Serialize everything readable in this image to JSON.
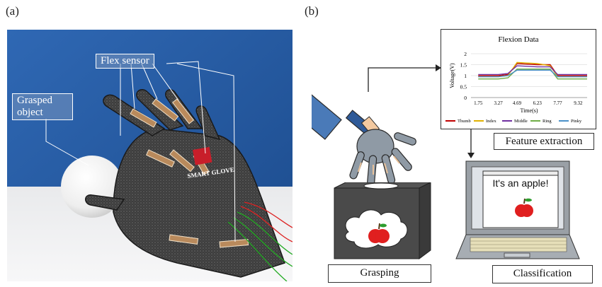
{
  "panel_a": {
    "label": "(a)",
    "callouts": {
      "flex_sensor": "Flex sensor",
      "grasped_object_line1": "Grasped",
      "grasped_object_line2": "object"
    },
    "glove_print": "SMART GLOVE"
  },
  "panel_b": {
    "label": "(b)",
    "apple_message": "It's an apple!",
    "captions": {
      "feature_extraction": "Feature extraction",
      "grasping": "Grasping",
      "classification": "Classification"
    }
  },
  "chart_data": {
    "type": "line",
    "title": "Flexion Data",
    "xlabel": "Time(s)",
    "ylabel": "Voltage(V)",
    "ylim": [
      0,
      2
    ],
    "y_ticks": [
      "0",
      "0.5",
      "1",
      "1.5",
      "2"
    ],
    "x_ticks": [
      "1.75",
      "3.27",
      "4.69",
      "6.23",
      "7.77",
      "9.32"
    ],
    "grid": true,
    "legend_position": "bottom",
    "x": [
      1.75,
      3.27,
      4.0,
      4.69,
      6.23,
      7.2,
      7.77,
      9.32,
      10.0
    ],
    "series": [
      {
        "name": "Thumb",
        "color": "#c00000",
        "values": [
          1.0,
          1.0,
          1.05,
          1.55,
          1.5,
          1.5,
          1.0,
          1.0,
          1.0
        ]
      },
      {
        "name": "Index",
        "color": "#e0b000",
        "values": [
          0.95,
          0.95,
          1.0,
          1.6,
          1.55,
          1.45,
          0.95,
          0.95,
          0.95
        ]
      },
      {
        "name": "Middle",
        "color": "#7030a0",
        "values": [
          1.05,
          1.05,
          1.1,
          1.45,
          1.4,
          1.4,
          1.05,
          1.05,
          1.05
        ]
      },
      {
        "name": "Ring",
        "color": "#70ad47",
        "values": [
          0.85,
          0.85,
          0.9,
          1.3,
          1.3,
          1.3,
          0.85,
          0.85,
          0.85
        ]
      },
      {
        "name": "Pinky",
        "color": "#4a90c8",
        "values": [
          0.95,
          0.95,
          1.0,
          1.25,
          1.25,
          1.25,
          0.95,
          0.95,
          0.95
        ]
      }
    ]
  }
}
